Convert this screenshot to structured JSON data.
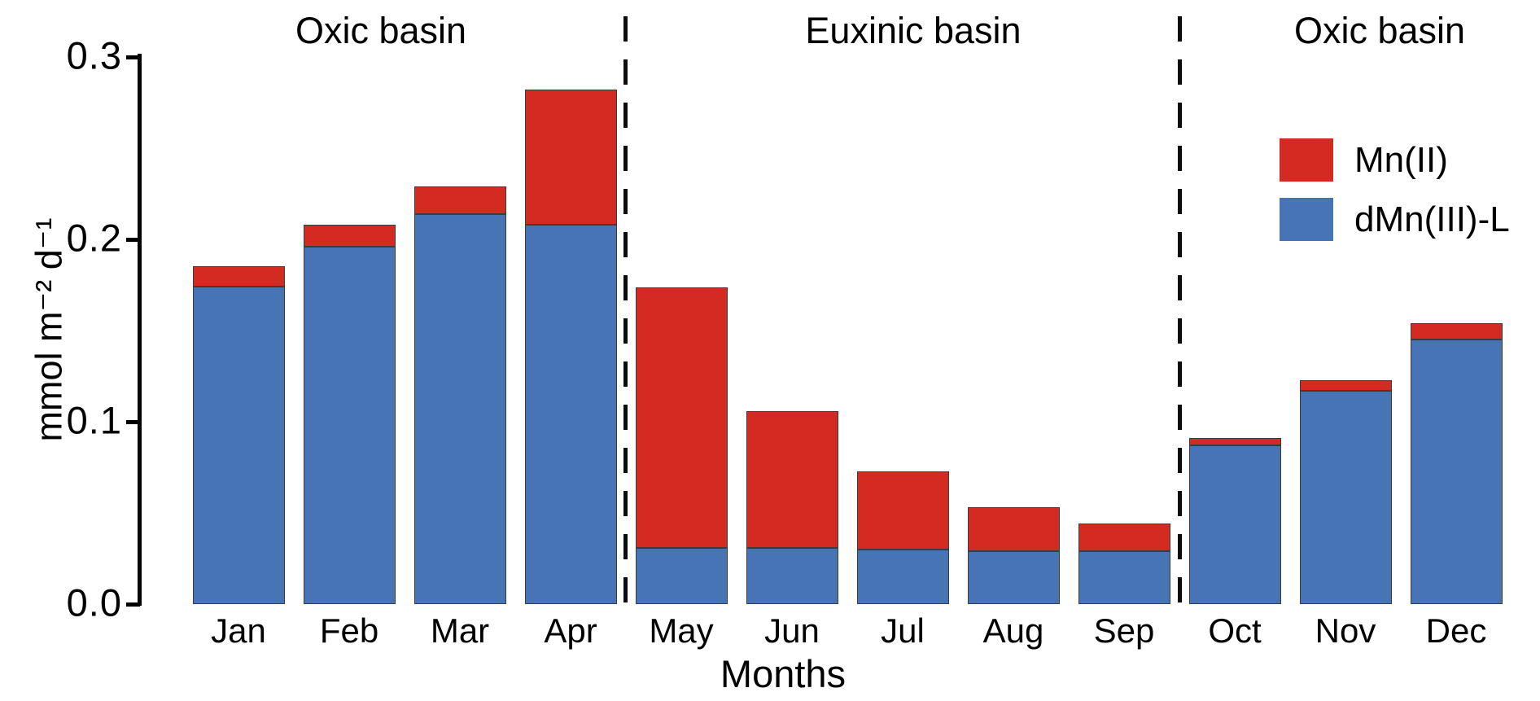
{
  "figure": {
    "background": "#ffffff",
    "y_axis": {
      "label": "mmol m⁻² d⁻¹",
      "ticks": [
        "0.0",
        "0.1",
        "0.2",
        "0.3"
      ],
      "tick_values": [
        0.0,
        0.1,
        0.2,
        0.3
      ]
    },
    "x_axis": {
      "label": "Months"
    },
    "regions": [
      {
        "label": "Oxic basin"
      },
      {
        "label": "Euxinic basin"
      },
      {
        "label": "Oxic basin"
      }
    ],
    "legend": [
      {
        "label": "Mn(II)",
        "color": "#d32b22"
      },
      {
        "label": "dMn(III)-L",
        "color": "#4674b4"
      }
    ]
  },
  "chart_data": {
    "type": "bar",
    "stacked": true,
    "title": "",
    "xlabel": "Months",
    "ylabel": "mmol m⁻² d⁻¹",
    "ylim": [
      0,
      0.3
    ],
    "grid": false,
    "legend_position": "upper right",
    "categories": [
      "Jan",
      "Feb",
      "Mar",
      "Apr",
      "May",
      "Jun",
      "Jul",
      "Aug",
      "Sep",
      "Oct",
      "Nov",
      "Dec"
    ],
    "series": [
      {
        "name": "dMn(III)-L",
        "color": "#4674b4",
        "stack_order": "bottom",
        "values": [
          0.174,
          0.196,
          0.214,
          0.208,
          0.031,
          0.031,
          0.03,
          0.029,
          0.029,
          0.087,
          0.117,
          0.145
        ]
      },
      {
        "name": "Mn(II)",
        "color": "#d32b22",
        "stack_order": "top",
        "values": [
          0.011,
          0.012,
          0.015,
          0.074,
          0.143,
          0.075,
          0.043,
          0.024,
          0.015,
          0.004,
          0.006,
          0.009
        ]
      }
    ],
    "stack_totals": [
      0.185,
      0.208,
      0.229,
      0.282,
      0.174,
      0.106,
      0.073,
      0.053,
      0.044,
      0.091,
      0.123,
      0.154
    ],
    "annotations": {
      "regions": [
        {
          "label": "Oxic basin",
          "from": "Jan",
          "to": "Apr"
        },
        {
          "label": "Euxinic basin",
          "from": "May",
          "to": "Sep"
        },
        {
          "label": "Oxic basin",
          "from": "Oct",
          "to": "Dec"
        }
      ],
      "dashed_dividers_between": [
        [
          "Apr",
          "May"
        ],
        [
          "Sep",
          "Oct"
        ]
      ]
    }
  }
}
